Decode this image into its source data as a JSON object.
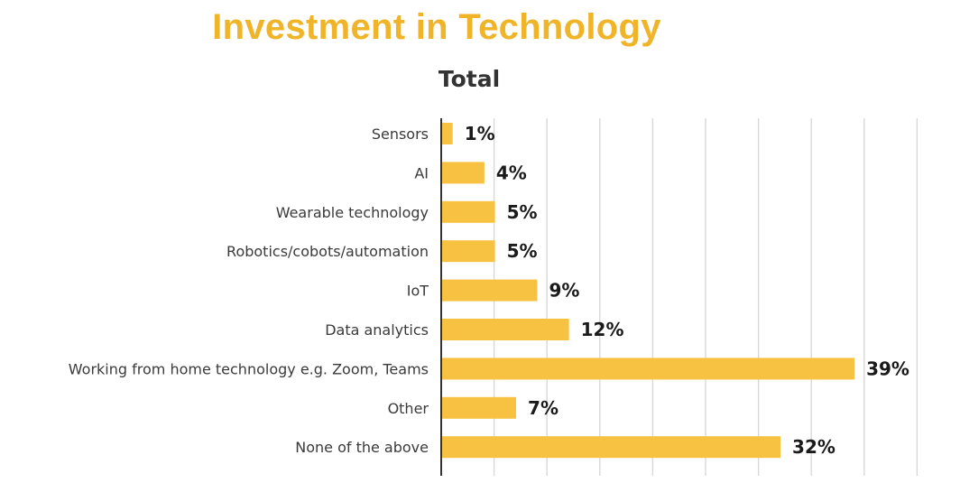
{
  "chart_data": {
    "type": "bar",
    "orientation": "horizontal",
    "title": "Investment in Technology",
    "subtitle": "Total",
    "categories": [
      "Sensors",
      "AI",
      "Wearable technology",
      "Robotics/cobots/automation",
      "IoT",
      "Data analytics",
      "Working from home technology e.g. Zoom, Teams",
      "Other",
      "None of the above"
    ],
    "values": [
      1,
      4,
      5,
      5,
      9,
      12,
      39,
      7,
      32
    ],
    "value_labels": [
      "1%",
      "4%",
      "5%",
      "5%",
      "9%",
      "12%",
      "39%",
      "7%",
      "32%"
    ],
    "unit": "%",
    "xlim": [
      0,
      45
    ],
    "grid": true,
    "bar_color": "#F7C242",
    "title_color": "#F0B429"
  }
}
